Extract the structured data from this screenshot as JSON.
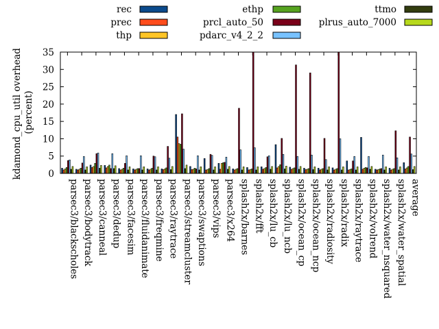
{
  "chart_data": {
    "type": "bar",
    "ylabel_line1": "kdamond_cpu_util overhead",
    "ylabel_line2": "(percent)",
    "ylim": [
      0,
      35
    ],
    "yticks": [
      0,
      5,
      10,
      15,
      20,
      25,
      30,
      35
    ],
    "legend_position": "top",
    "categories": [
      "parsec3/blackscholes",
      "parsec3/bodytrack",
      "parsec3/canneal",
      "parsec3/dedup",
      "parsec3/facesim",
      "parsec3/fluidanimate",
      "parsec3/freqmine",
      "parsec3/raytrace",
      "parsec3/streamcluster",
      "parsec3/swaptions",
      "parsec3/vips",
      "parsec3/x264",
      "splash2x/barnes",
      "splash2x/fft",
      "splash2x/lu_cb",
      "splash2x/lu_ncb",
      "splash2x/ocean_cp",
      "splash2x/ocean_ncp",
      "splash2x/radiosity",
      "splash2x/radix",
      "splash2x/raytrace",
      "splash2x/volrend",
      "splash2x/water_nsquared",
      "splash2x/water_spatial",
      "average"
    ],
    "series": [
      {
        "name": "rec",
        "color": "#0b4a8c",
        "values": [
          1.5,
          1.2,
          2.4,
          2.3,
          1.4,
          1.3,
          1.3,
          1.3,
          17.0,
          2.0,
          4.3,
          2.9,
          1.3,
          1.7,
          1.9,
          8.3,
          1.8,
          1.5,
          1.5,
          1.6,
          3.6,
          10.4,
          1.2,
          1.5,
          3.1
        ]
      },
      {
        "name": "prec",
        "color": "#ff4c1c",
        "values": [
          1.0,
          1.0,
          1.7,
          1.6,
          1.0,
          1.0,
          1.0,
          1.1,
          10.5,
          1.1,
          1.0,
          1.2,
          1.0,
          1.0,
          1.2,
          1.6,
          1.2,
          1.1,
          1.0,
          1.0,
          1.0,
          1.2,
          1.0,
          1.0,
          1.3
        ]
      },
      {
        "name": "thp",
        "color": "#ffc526",
        "values": [
          1.3,
          1.2,
          2.0,
          2.0,
          1.2,
          1.2,
          1.2,
          1.3,
          8.6,
          1.2,
          1.1,
          2.9,
          1.2,
          1.1,
          1.4,
          2.0,
          1.4,
          1.2,
          1.2,
          1.2,
          1.1,
          1.5,
          1.1,
          1.2,
          1.6
        ]
      },
      {
        "name": "ethp",
        "color": "#56a31f",
        "values": [
          1.7,
          1.5,
          2.9,
          2.4,
          1.5,
          1.4,
          1.5,
          1.6,
          8.4,
          1.5,
          1.4,
          3.1,
          1.4,
          1.3,
          1.7,
          2.5,
          1.6,
          1.4,
          1.4,
          1.4,
          1.3,
          1.7,
          1.3,
          1.4,
          2.0
        ]
      },
      {
        "name": "prcl_auto_50",
        "color": "#7a0019",
        "values": [
          3.7,
          3.0,
          5.7,
          1.4,
          2.9,
          1.4,
          5.0,
          7.8,
          17.2,
          1.3,
          5.5,
          3.2,
          18.8,
          35.0,
          4.8,
          10.1,
          31.3,
          29.0,
          10.1,
          35.0,
          3.6,
          1.6,
          1.4,
          12.3,
          10.5
        ]
      },
      {
        "name": "pdarc_v4_2_2",
        "color": "#78c2ff",
        "values": [
          3.9,
          4.9,
          5.9,
          5.7,
          5.1,
          5.1,
          4.8,
          4.4,
          7.0,
          5.1,
          5.2,
          4.7,
          6.8,
          7.4,
          5.1,
          5.5,
          4.9,
          5.3,
          4.0,
          10.0,
          4.9,
          4.9,
          5.3,
          4.5,
          5.6
        ]
      },
      {
        "name": "ttmo",
        "color": "#333d0f",
        "values": [
          1.2,
          1.0,
          1.5,
          1.4,
          1.0,
          1.0,
          1.0,
          1.1,
          1.4,
          1.0,
          1.0,
          1.2,
          1.0,
          1.0,
          1.2,
          1.3,
          1.2,
          1.1,
          1.0,
          1.0,
          1.0,
          1.2,
          1.0,
          1.0,
          1.1
        ]
      },
      {
        "name": "plrus_auto_7000",
        "color": "#b7d91c",
        "values": [
          2.0,
          1.9,
          2.3,
          2.2,
          1.9,
          1.9,
          1.9,
          2.0,
          2.4,
          1.9,
          1.9,
          2.0,
          1.9,
          1.9,
          2.0,
          2.1,
          2.0,
          1.9,
          1.9,
          1.9,
          1.9,
          2.0,
          1.9,
          1.9,
          2.0
        ]
      }
    ]
  }
}
